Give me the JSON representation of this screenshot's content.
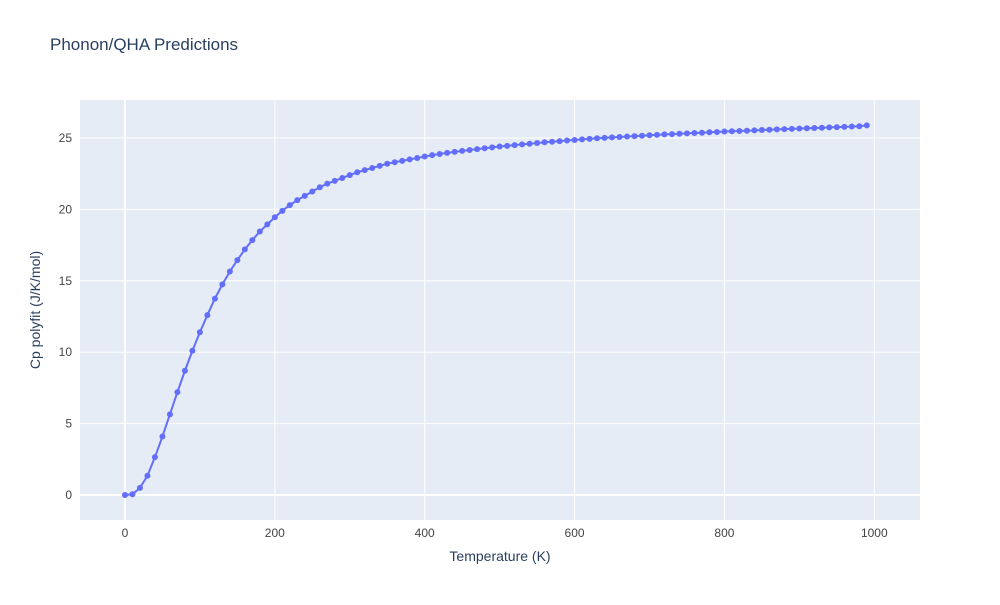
{
  "chart_data": {
    "type": "line",
    "title": "Phonon/QHA Predictions",
    "x_label": "Temperature (K)",
    "y_label": "Cp polyfit (J/K/mol)",
    "x": [
      0,
      10,
      20,
      30,
      40,
      50,
      60,
      70,
      80,
      90,
      100,
      110,
      120,
      130,
      140,
      150,
      160,
      170,
      180,
      190,
      200,
      210,
      220,
      230,
      240,
      250,
      260,
      270,
      280,
      290,
      300,
      310,
      320,
      330,
      340,
      350,
      360,
      370,
      380,
      390,
      400,
      410,
      420,
      430,
      440,
      450,
      460,
      470,
      480,
      490,
      500,
      510,
      520,
      530,
      540,
      550,
      560,
      570,
      580,
      590,
      600,
      610,
      620,
      630,
      640,
      650,
      660,
      670,
      680,
      690,
      700,
      710,
      720,
      730,
      740,
      750,
      760,
      770,
      780,
      790,
      800,
      810,
      820,
      830,
      840,
      850,
      860,
      870,
      880,
      890,
      900,
      910,
      920,
      930,
      940,
      950,
      960,
      970,
      980,
      990
    ],
    "series": [
      {
        "color": "#636efa",
        "values": [
          0,
          0.05,
          0.5,
          1.35,
          2.65,
          4.1,
          5.65,
          7.2,
          8.7,
          10.1,
          11.4,
          12.6,
          13.75,
          14.75,
          15.65,
          16.45,
          17.2,
          17.85,
          18.45,
          18.95,
          19.45,
          19.9,
          20.3,
          20.65,
          20.95,
          21.25,
          21.55,
          21.8,
          22.0,
          22.2,
          22.4,
          22.6,
          22.75,
          22.9,
          23.05,
          23.2,
          23.3,
          23.4,
          23.5,
          23.6,
          23.7,
          23.8,
          23.88,
          23.96,
          24.03,
          24.1,
          24.16,
          24.22,
          24.28,
          24.34,
          24.4,
          24.45,
          24.5,
          24.55,
          24.6,
          24.65,
          24.7,
          24.74,
          24.78,
          24.82,
          24.86,
          24.9,
          24.94,
          24.98,
          25.01,
          25.04,
          25.07,
          25.1,
          25.13,
          25.16,
          25.19,
          25.22,
          25.25,
          25.27,
          25.3,
          25.32,
          25.35,
          25.37,
          25.4,
          25.42,
          25.45,
          25.47,
          25.49,
          25.51,
          25.53,
          25.56,
          25.58,
          25.6,
          25.62,
          25.64,
          25.66,
          25.68,
          25.7,
          25.72,
          25.74,
          25.76,
          25.78,
          25.8,
          25.82,
          25.88
        ]
      }
    ],
    "xlim": [
      -60,
      1061
    ],
    "ylim": [
      -1.75,
      27.66
    ],
    "xticks": [
      0,
      200,
      400,
      600,
      800,
      1000
    ],
    "yticks": [
      0,
      5,
      10,
      15,
      20,
      25
    ],
    "grid": true,
    "plot_background": "#e5ecf6"
  }
}
